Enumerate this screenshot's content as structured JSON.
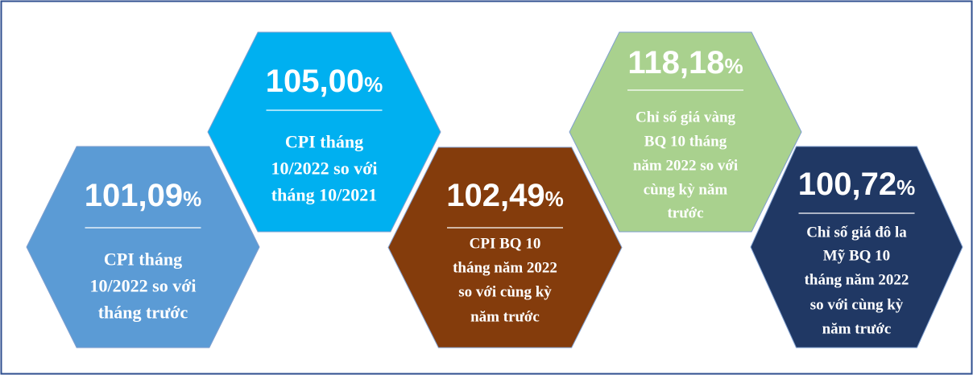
{
  "cards": [
    {
      "value": "101,09",
      "unit": "%",
      "lines": [
        "CPI tháng",
        "10/2022 so với",
        "tháng trước"
      ]
    },
    {
      "value": "105,00",
      "unit": "%",
      "lines": [
        "CPI tháng",
        "10/2022 so với",
        "tháng 10/2021"
      ]
    },
    {
      "value": "102,49",
      "unit": "%",
      "lines": [
        "CPI BQ 10",
        "tháng năm 2022",
        "so với cùng kỳ",
        "năm trước"
      ]
    },
    {
      "value": "118,18",
      "unit": "%",
      "lines": [
        "Chỉ số giá vàng",
        "BQ 10 tháng",
        "năm 2022 so với",
        "cùng kỳ năm",
        "trước"
      ]
    },
    {
      "value": "100,72",
      "unit": "%",
      "lines": [
        "Chỉ số giá đô la",
        "Mỹ BQ 10",
        "tháng năm 2022",
        "so với cùng kỳ",
        "năm trước"
      ]
    }
  ]
}
